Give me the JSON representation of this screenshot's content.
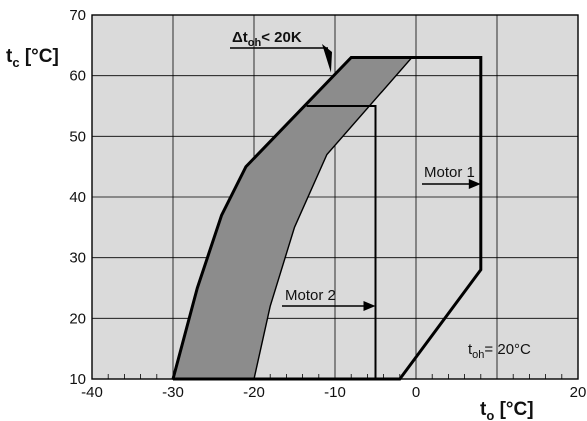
{
  "chart_data": {
    "type": "line",
    "xlim": [
      -40,
      20
    ],
    "ylim": [
      10,
      70
    ],
    "grid": true,
    "x_ticks": [
      "-40",
      "-30",
      "-20",
      "-10",
      "0",
      "20"
    ],
    "y_ticks": [
      "10",
      "20",
      "30",
      "40",
      "50",
      "60",
      "70"
    ],
    "xlabel": {
      "main": "t",
      "sub": "o",
      "unit": "[°C]"
    },
    "ylabel": {
      "main": "t",
      "sub": "c",
      "unit": "[°C]"
    },
    "outer_envelope": [
      [
        -30,
        10
      ],
      [
        -27,
        25
      ],
      [
        -24,
        37
      ],
      [
        -21,
        45
      ],
      [
        -8,
        63
      ],
      [
        8,
        63
      ],
      [
        8,
        28
      ],
      [
        -2,
        10
      ],
      [
        -30,
        10
      ]
    ],
    "motor2_envelope": [
      [
        -13.5,
        55
      ],
      [
        -5,
        55
      ],
      [
        -5,
        10
      ]
    ],
    "shaded_band": {
      "upper": [
        [
          -30,
          10
        ],
        [
          -27,
          25
        ],
        [
          -24,
          37
        ],
        [
          -21,
          45
        ],
        [
          -8,
          63
        ],
        [
          -0.5,
          63
        ]
      ],
      "lower": [
        [
          -20,
          10
        ],
        [
          -18,
          22
        ],
        [
          -15,
          35
        ],
        [
          -11,
          47
        ],
        [
          -0.5,
          63
        ]
      ],
      "color": "#8c8c8c"
    },
    "annotations": {
      "delta_label": {
        "prefix": "Δt",
        "sub": "oh",
        "suffix": "< 20K"
      },
      "motor1": "Motor 1",
      "motor2": "Motor 2",
      "toh_label": {
        "main": "t",
        "sub": "oh",
        "suffix": "= 20°C"
      }
    },
    "colors": {
      "plot_background": "#dadada",
      "grid": "#000000",
      "lines": "#000000"
    }
  }
}
